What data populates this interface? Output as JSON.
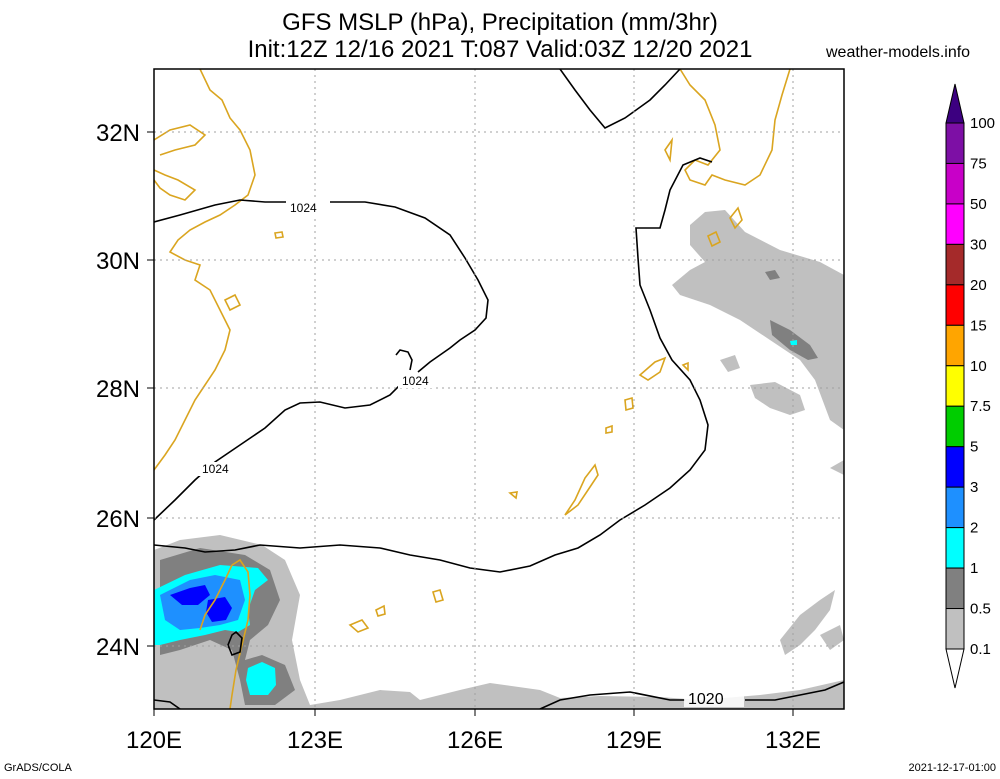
{
  "title": {
    "line1": "GFS MSLP (hPa), Precipitation (mm/3hr)",
    "line2": "Init:12Z 12/16 2021 T:087 Valid:03Z 12/20 2021"
  },
  "credit": "weather-models.info",
  "footer": {
    "left": "GrADS/COLA",
    "right": "2021-12-17-01:00"
  },
  "axes": {
    "lon_labels": [
      "120E",
      "123E",
      "126E",
      "129E",
      "132E"
    ],
    "lat_labels": [
      "32N",
      "30N",
      "28N",
      "26N",
      "24N"
    ]
  },
  "isobars": {
    "label_1024": "1024",
    "label_1020": "1020"
  },
  "colorbar": {
    "labels": [
      "100",
      "75",
      "50",
      "30",
      "20",
      "15",
      "10",
      "7.5",
      "5",
      "3",
      "2",
      "1",
      "0.5",
      "0.1"
    ],
    "colors": [
      "#7d0fa5",
      "#c800c8",
      "#ff00ff",
      "#a52a2a",
      "#ff0000",
      "#ffa500",
      "#ffff00",
      "#00cd00",
      "#0000ff",
      "#1e90ff",
      "#00ffff",
      "#808080",
      "#c0c0c0"
    ],
    "top_color": "#3c0080",
    "bottom_color": "#ffffff"
  },
  "colors": {
    "coastline": "#daa520",
    "isobar": "#000000",
    "grid": "#a0a0a0"
  }
}
